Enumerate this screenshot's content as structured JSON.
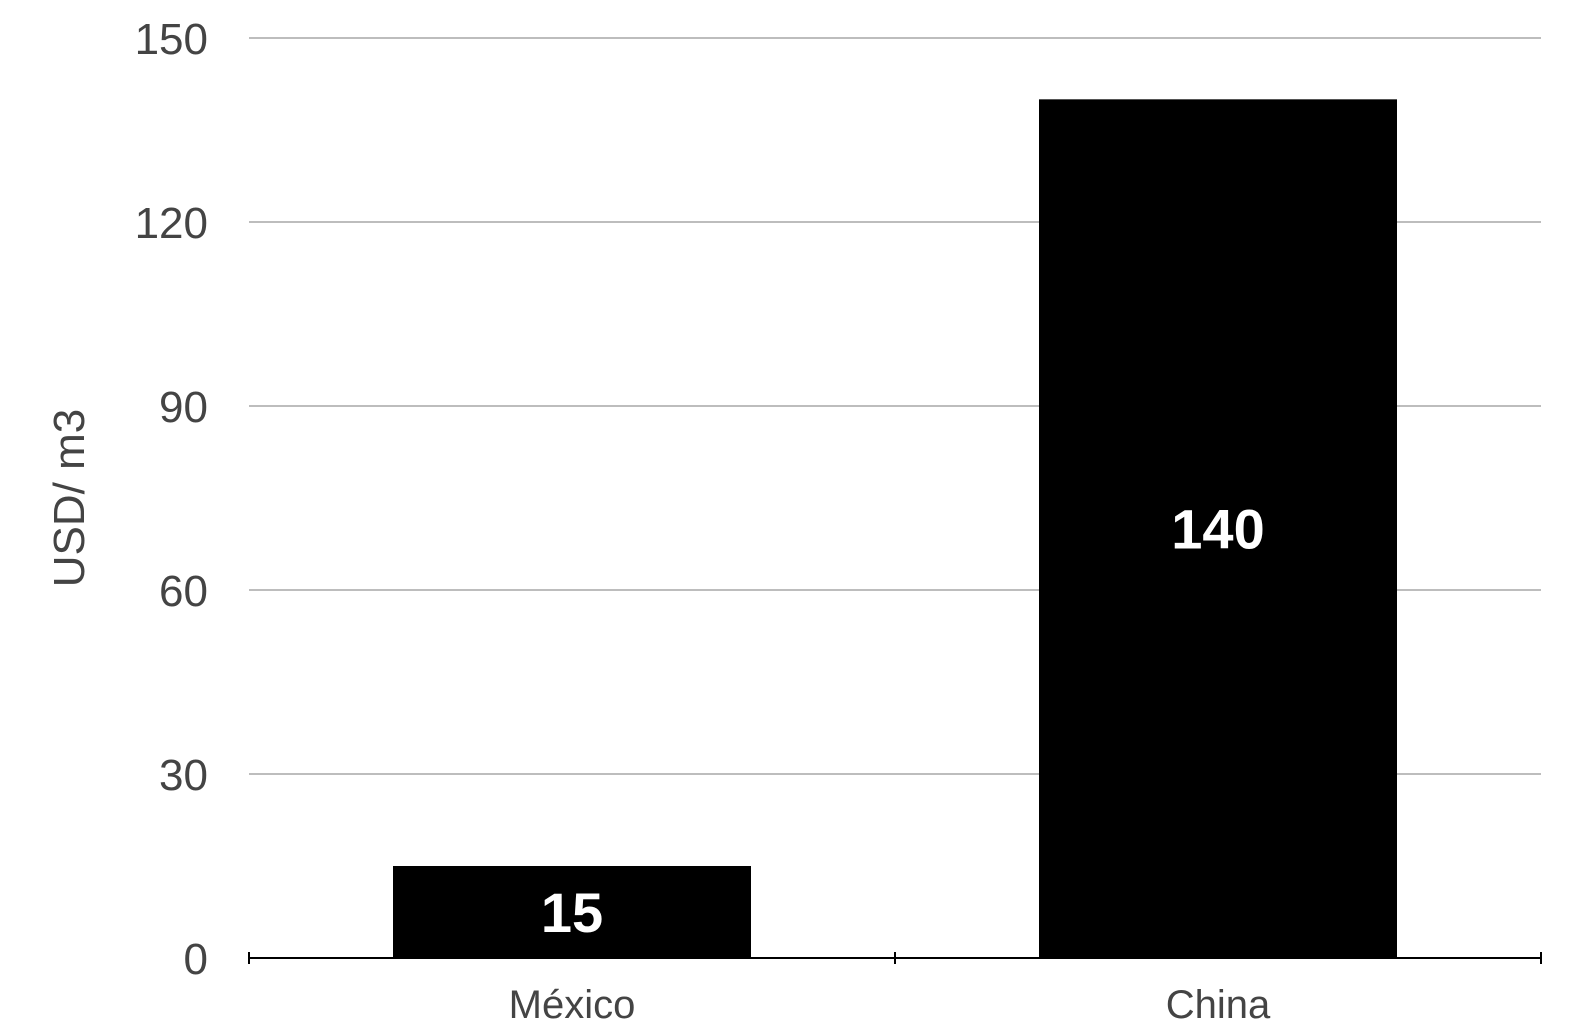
{
  "chart_data": {
    "type": "bar",
    "categories": [
      "México",
      "China"
    ],
    "values": [
      15,
      140
    ],
    "data_labels": [
      "15",
      "140"
    ],
    "ylabel": "USD/ m3",
    "xlabel": "",
    "ylim": [
      0,
      150
    ],
    "yticks": [
      0,
      30,
      60,
      90,
      120,
      150
    ],
    "ytick_labels": [
      "0",
      "30",
      "60",
      "90",
      "120",
      "150"
    ],
    "grid": true,
    "legend": "none",
    "colors": {
      "bar": "#000000",
      "grid": "#bdbdbd",
      "text": "#444444",
      "data_label": "#ffffff",
      "axis": "#000000"
    }
  }
}
